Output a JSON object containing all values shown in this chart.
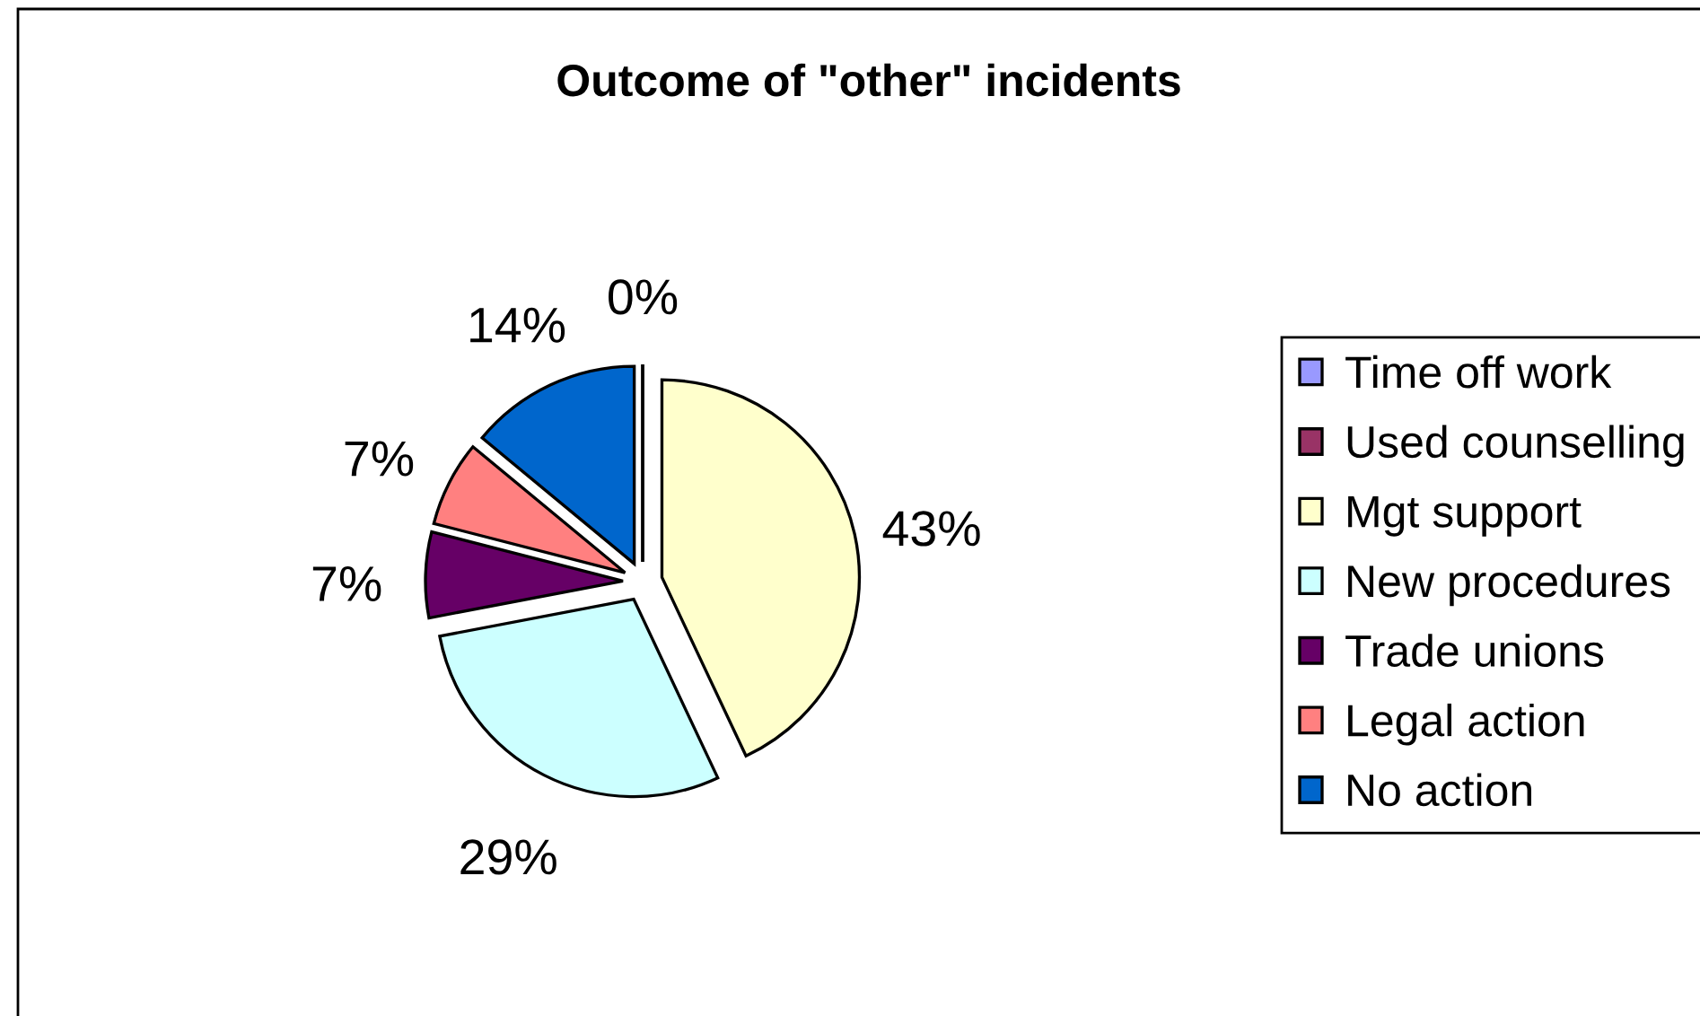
{
  "chart_data": {
    "type": "pie",
    "title": "Outcome of \"other\" incidents",
    "categories": [
      "Time off work",
      "Used counselling",
      "Mgt support",
      "New procedures",
      "Trade unions",
      "Legal action",
      "No action"
    ],
    "values": [
      0,
      0,
      43,
      29,
      7,
      7,
      14
    ],
    "colors": [
      "#9999ff",
      "#993366",
      "#ffffcc",
      "#ccffff",
      "#660066",
      "#ff8080",
      "#0066cc"
    ],
    "value_labels": [
      "0%",
      null,
      "43%",
      "29%",
      "7%",
      "7%",
      "14%"
    ],
    "legend": "right"
  }
}
